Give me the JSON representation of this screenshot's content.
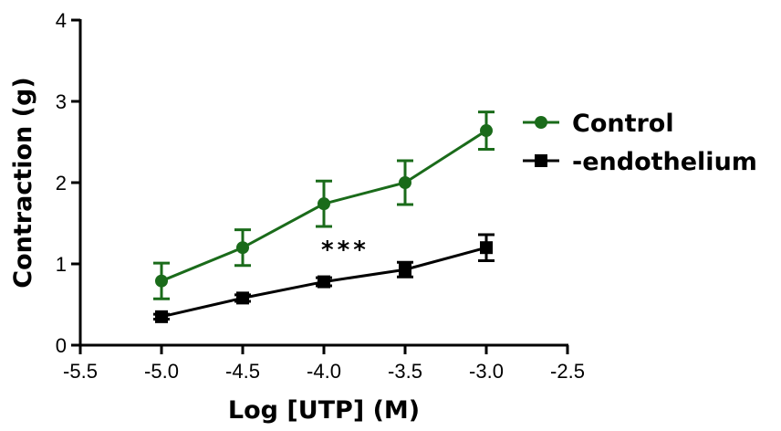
{
  "chart_data": {
    "type": "line",
    "xlabel": "Log [UTP] (M)",
    "ylabel": "Contraction (g)",
    "xlim": [
      -5.5,
      -2.5
    ],
    "ylim": [
      0,
      4
    ],
    "xticks": [
      "-5.5",
      "-5.0",
      "-4.5",
      "-4.0",
      "-3.5",
      "-3.0",
      "-2.5"
    ],
    "yticks": [
      "0",
      "1",
      "2",
      "3",
      "4"
    ],
    "grid": false,
    "legend_position": "right",
    "annotation": "***",
    "series": [
      {
        "name": "Control",
        "color": "#1a6b1a",
        "marker": "circle",
        "x": [
          -5.0,
          -4.5,
          -4.0,
          -3.5,
          -3.0
        ],
        "y": [
          0.79,
          1.2,
          1.74,
          2.0,
          2.64
        ],
        "error": [
          0.22,
          0.22,
          0.28,
          0.27,
          0.23
        ]
      },
      {
        "name": "-endothelium",
        "color": "#000000",
        "marker": "square",
        "x": [
          -5.0,
          -4.5,
          -4.0,
          -3.5,
          -3.0
        ],
        "y": [
          0.35,
          0.58,
          0.78,
          0.93,
          1.2
        ],
        "error": [
          0.03,
          0.04,
          0.05,
          0.09,
          0.16
        ]
      }
    ]
  }
}
